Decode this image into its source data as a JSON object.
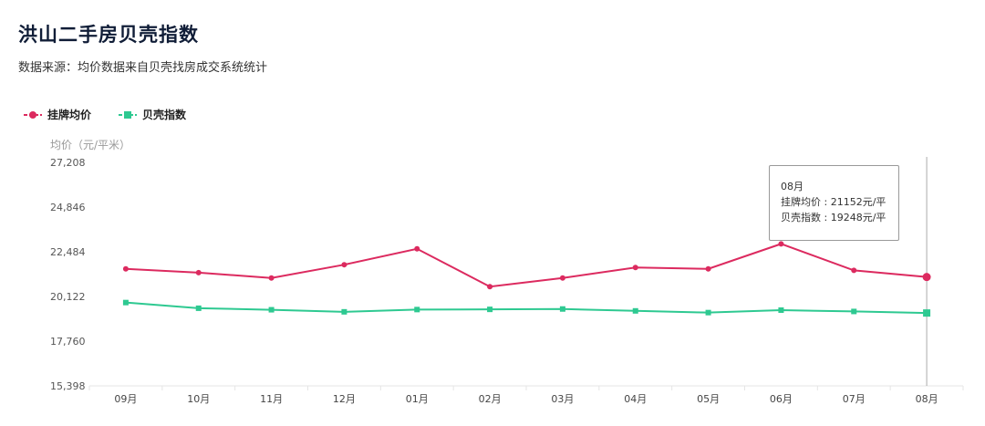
{
  "header": {
    "title": "洪山二手房贝壳指数",
    "subtitle": "数据来源：均价数据来自贝壳找房成交系统统计"
  },
  "legend": [
    {
      "label": "挂牌均价",
      "color": "#dc2a5f",
      "marker": "circle"
    },
    {
      "label": "贝壳指数",
      "color": "#2ec991",
      "marker": "square"
    }
  ],
  "tooltip": {
    "title": "08月",
    "line1": "挂牌均价 : 21152元/平",
    "line2": "贝壳指数 : 19248元/平"
  },
  "chart_data": {
    "type": "line",
    "ylabel": "均价（元/平米）",
    "yticks": [
      15398,
      17760,
      20122,
      22484,
      24846,
      27208
    ],
    "ytick_labels": [
      "15,398",
      "17,760",
      "20,122",
      "22,484",
      "24,846",
      "27,208"
    ],
    "ylim": [
      15398,
      27208
    ],
    "categories": [
      "09月",
      "10月",
      "11月",
      "12月",
      "01月",
      "02月",
      "03月",
      "04月",
      "05月",
      "06月",
      "07月",
      "08月"
    ],
    "series": [
      {
        "name": "挂牌均价",
        "color": "#dc2a5f",
        "marker": "circle",
        "values": [
          21580,
          21380,
          21100,
          21800,
          22640,
          20640,
          21100,
          21650,
          21580,
          22900,
          21500,
          21152
        ]
      },
      {
        "name": "贝壳指数",
        "color": "#2ec991",
        "marker": "square",
        "values": [
          19800,
          19500,
          19420,
          19310,
          19430,
          19440,
          19460,
          19360,
          19270,
          19400,
          19330,
          19248
        ]
      }
    ],
    "highlight_index": 11,
    "grid": false,
    "legend_position": "top-left"
  }
}
